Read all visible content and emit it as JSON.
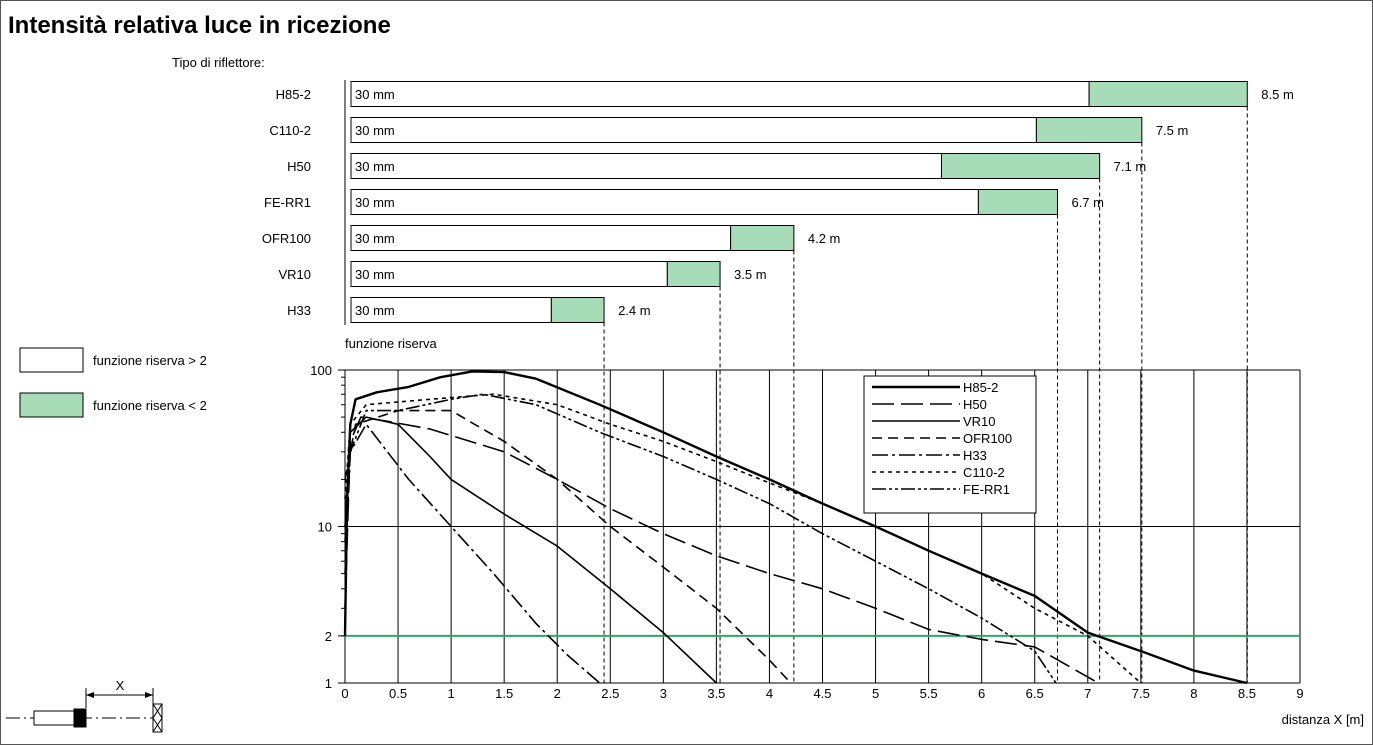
{
  "title": "Intensità relativa luce in ricezione",
  "reflector_heading": "Tipo di riflettore:",
  "colors": {
    "reserve_low": "#a8dcb8",
    "threshold_line": "#2ea86a",
    "frame": "#555555"
  },
  "chart_data": [
    {
      "type": "bar",
      "orientation": "horizontal",
      "stacked": true,
      "categories": [
        "H85-2",
        "C110-2",
        "H50",
        "FE-RR1",
        "OFR100",
        "VR10",
        "H33"
      ],
      "bar_inner_label": "30 mm",
      "series": [
        {
          "name": "funzione riserva > 2",
          "values": [
            7.0,
            6.5,
            5.6,
            5.95,
            3.6,
            3.0,
            1.9
          ]
        },
        {
          "name": "funzione riserva < 2",
          "values": [
            1.5,
            1.0,
            1.5,
            0.75,
            0.6,
            0.5,
            0.5
          ]
        }
      ],
      "range_labels": [
        "8.5 m",
        "7.5 m",
        "7.1 m",
        "6.7 m",
        "4.2 m",
        "3.5 m",
        "2.4 m"
      ],
      "xlim": [
        0,
        9
      ]
    },
    {
      "type": "line",
      "ylabel": "funzione riserva",
      "xlabel": "distanza X [m]",
      "xlim": [
        0,
        9
      ],
      "ylim": [
        1,
        100
      ],
      "yscale": "log",
      "x_ticks": [
        "0",
        "0.5",
        "1",
        "1.5",
        "2",
        "2.5",
        "3",
        "3.5",
        "4",
        "4.5",
        "5",
        "5.5",
        "6",
        "6.5",
        "7",
        "7.5",
        "8",
        "8.5",
        "9"
      ],
      "y_ticks": [
        "1",
        "2",
        "10",
        "100"
      ],
      "threshold": 2,
      "grid": true,
      "legend_position": "top-right",
      "series": [
        {
          "name": "H85-2",
          "points": [
            [
              0,
              2
            ],
            [
              0.02,
              15
            ],
            [
              0.05,
              45
            ],
            [
              0.1,
              65
            ],
            [
              0.3,
              72
            ],
            [
              0.6,
              78
            ],
            [
              0.9,
              90
            ],
            [
              1.2,
              98
            ],
            [
              1.5,
              97
            ],
            [
              1.8,
              88
            ],
            [
              2.4,
              60
            ],
            [
              3,
              40
            ],
            [
              3.5,
              28
            ],
            [
              4,
              20
            ],
            [
              4.5,
              14
            ],
            [
              5,
              10
            ],
            [
              5.5,
              7
            ],
            [
              6,
              5
            ],
            [
              6.5,
              3.6
            ],
            [
              7,
              2.1
            ],
            [
              7.5,
              1.6
            ],
            [
              8,
              1.2
            ],
            [
              8.5,
              1.0
            ]
          ]
        },
        {
          "name": "H50",
          "points": [
            [
              0,
              3
            ],
            [
              0.05,
              35
            ],
            [
              0.15,
              50
            ],
            [
              0.4,
              47
            ],
            [
              0.8,
              42
            ],
            [
              1.5,
              30
            ],
            [
              2,
              20
            ],
            [
              2.5,
              13
            ],
            [
              3,
              9
            ],
            [
              3.5,
              6.5
            ],
            [
              4,
              5
            ],
            [
              4.5,
              4
            ],
            [
              5,
              3
            ],
            [
              5.5,
              2.2
            ],
            [
              6,
              1.9
            ],
            [
              6.5,
              1.7
            ],
            [
              7.1,
              1.0
            ]
          ]
        },
        {
          "name": "VR10",
          "points": [
            [
              0,
              10
            ],
            [
              0.05,
              40
            ],
            [
              0.2,
              50
            ],
            [
              0.5,
              45
            ],
            [
              0.8,
              28
            ],
            [
              1,
              20
            ],
            [
              1.5,
              12
            ],
            [
              2,
              7.5
            ],
            [
              2.5,
              4
            ],
            [
              3,
              2.1
            ],
            [
              3.5,
              1.0
            ]
          ]
        },
        {
          "name": "OFR100",
          "points": [
            [
              0,
              20
            ],
            [
              0.1,
              45
            ],
            [
              0.5,
              55
            ],
            [
              1,
              55
            ],
            [
              1.5,
              35
            ],
            [
              2,
              20
            ],
            [
              2.5,
              10
            ],
            [
              3,
              5.5
            ],
            [
              3.5,
              3
            ],
            [
              4,
              1.4
            ],
            [
              4.2,
              1.0
            ]
          ]
        },
        {
          "name": "H33",
          "points": [
            [
              0,
              5
            ],
            [
              0.05,
              30
            ],
            [
              0.2,
              45
            ],
            [
              0.4,
              30
            ],
            [
              0.6,
              20
            ],
            [
              1,
              10
            ],
            [
              1.4,
              5
            ],
            [
              1.8,
              2.4
            ],
            [
              2.1,
              1.5
            ],
            [
              2.4,
              1.0
            ]
          ]
        },
        {
          "name": "C110-2",
          "points": [
            [
              0,
              15
            ],
            [
              0.05,
              45
            ],
            [
              0.2,
              60
            ],
            [
              0.8,
              65
            ],
            [
              1.4,
              70
            ],
            [
              2,
              60
            ],
            [
              2.5,
              45
            ],
            [
              3,
              35
            ],
            [
              3.5,
              26
            ],
            [
              4,
              19
            ],
            [
              4.5,
              14
            ],
            [
              5,
              10
            ],
            [
              5.5,
              7
            ],
            [
              6,
              5
            ],
            [
              6.5,
              3
            ],
            [
              7,
              2
            ],
            [
              7.5,
              1.0
            ]
          ]
        },
        {
          "name": "FE-RR1",
          "points": [
            [
              0,
              8
            ],
            [
              0.05,
              30
            ],
            [
              0.2,
              55
            ],
            [
              0.5,
              55
            ],
            [
              1,
              65
            ],
            [
              1.3,
              70
            ],
            [
              1.8,
              60
            ],
            [
              2.4,
              40
            ],
            [
              3,
              28
            ],
            [
              3.5,
              20
            ],
            [
              4,
              14
            ],
            [
              4.5,
              9
            ],
            [
              5,
              6
            ],
            [
              5.5,
              4
            ],
            [
              6,
              2.6
            ],
            [
              6.5,
              1.6
            ],
            [
              6.7,
              1.0
            ]
          ]
        }
      ]
    }
  ],
  "legend_boxes": {
    "high": "funzione riserva > 2",
    "low": "funzione riserva < 2"
  },
  "diagram": {
    "label": "X"
  }
}
